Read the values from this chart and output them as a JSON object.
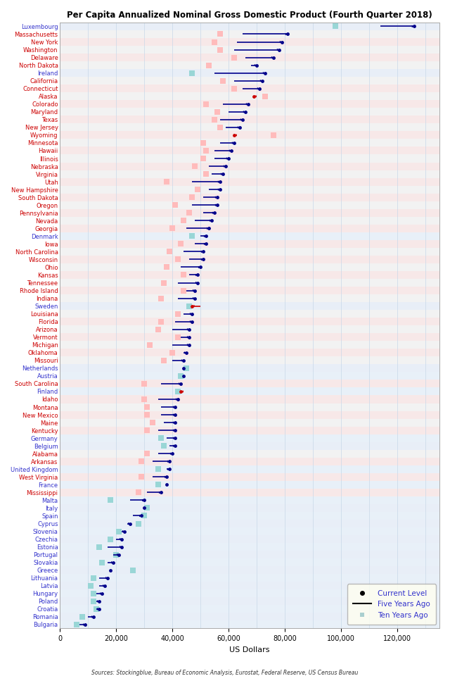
{
  "title": "Per Capita Annualized Nominal Gross Domestic Product (Fourth Quarter 2018)",
  "xlabel": "US Dollars",
  "source": "Sources: Stockingblue, Bureau of Economic Analysis, Eurostat, Federal Reserve, US Census Bureau",
  "entries": [
    {
      "label": "Luxembourg",
      "type": "eu",
      "ten": 98000,
      "five": 114000,
      "current": 126000
    },
    {
      "label": "Massachusetts",
      "type": "us",
      "ten": 57000,
      "five": 65000,
      "current": 81000
    },
    {
      "label": "New York",
      "type": "us",
      "ten": 55000,
      "five": 63000,
      "current": 79000
    },
    {
      "label": "Washington",
      "type": "us",
      "ten": 57000,
      "five": 62000,
      "current": 78000
    },
    {
      "label": "Delaware",
      "type": "us",
      "ten": 62000,
      "five": 66000,
      "current": 76000
    },
    {
      "label": "North Dakota",
      "type": "us",
      "ten": 53000,
      "five": 68000,
      "current": 70000
    },
    {
      "label": "Ireland",
      "type": "eu",
      "ten": 47000,
      "five": 55000,
      "current": 73000
    },
    {
      "label": "California",
      "type": "us",
      "ten": 58000,
      "five": 62000,
      "current": 72000
    },
    {
      "label": "Connecticut",
      "type": "us",
      "ten": 62000,
      "five": 65000,
      "current": 71000
    },
    {
      "label": "Alaska",
      "type": "us",
      "ten": 73000,
      "five": 70000,
      "current": 69000
    },
    {
      "label": "Colorado",
      "type": "us",
      "ten": 52000,
      "five": 58000,
      "current": 67000
    },
    {
      "label": "Maryland",
      "type": "us",
      "ten": 56000,
      "five": 60000,
      "current": 66000
    },
    {
      "label": "Texas",
      "type": "us",
      "ten": 55000,
      "five": 57000,
      "current": 65000
    },
    {
      "label": "New Jersey",
      "type": "us",
      "ten": 57000,
      "five": 59000,
      "current": 64000
    },
    {
      "label": "Wyoming",
      "type": "us",
      "ten": 76000,
      "five": 63000,
      "current": 62000
    },
    {
      "label": "Minnesota",
      "type": "us",
      "ten": 51000,
      "five": 57000,
      "current": 62000
    },
    {
      "label": "Hawaii",
      "type": "us",
      "ten": 52000,
      "five": 55000,
      "current": 61000
    },
    {
      "label": "Illinois",
      "type": "us",
      "ten": 51000,
      "five": 55000,
      "current": 60000
    },
    {
      "label": "Nebraska",
      "type": "us",
      "ten": 48000,
      "five": 53000,
      "current": 59000
    },
    {
      "label": "Virginia",
      "type": "us",
      "ten": 52000,
      "five": 54000,
      "current": 58000
    },
    {
      "label": "Utah",
      "type": "us",
      "ten": 38000,
      "five": 47000,
      "current": 57000
    },
    {
      "label": "New Hampshire",
      "type": "us",
      "ten": 49000,
      "five": 53000,
      "current": 57000
    },
    {
      "label": "South Dakota",
      "type": "us",
      "ten": 47000,
      "five": 51000,
      "current": 56000
    },
    {
      "label": "Oregon",
      "type": "us",
      "ten": 41000,
      "five": 47000,
      "current": 56000
    },
    {
      "label": "Pennsylvania",
      "type": "us",
      "ten": 46000,
      "five": 51000,
      "current": 55000
    },
    {
      "label": "Nevada",
      "type": "us",
      "ten": 44000,
      "five": 48000,
      "current": 54000
    },
    {
      "label": "Georgia",
      "type": "us",
      "ten": 40000,
      "five": 45000,
      "current": 53000
    },
    {
      "label": "Denmark",
      "type": "eu",
      "ten": 47000,
      "five": 50000,
      "current": 52000
    },
    {
      "label": "Iowa",
      "type": "us",
      "ten": 43000,
      "five": 48000,
      "current": 52000
    },
    {
      "label": "North Carolina",
      "type": "us",
      "ten": 39000,
      "five": 44000,
      "current": 51000
    },
    {
      "label": "Wisconsin",
      "type": "us",
      "ten": 42000,
      "five": 46000,
      "current": 51000
    },
    {
      "label": "Ohio",
      "type": "us",
      "ten": 38000,
      "five": 43000,
      "current": 50000
    },
    {
      "label": "Kansas",
      "type": "us",
      "ten": 44000,
      "five": 46000,
      "current": 49000
    },
    {
      "label": "Tennessee",
      "type": "us",
      "ten": 37000,
      "five": 42000,
      "current": 49000
    },
    {
      "label": "Rhode Island",
      "type": "us",
      "ten": 44000,
      "five": 45000,
      "current": 48000
    },
    {
      "label": "Indiana",
      "type": "us",
      "ten": 36000,
      "five": 42000,
      "current": 48000
    },
    {
      "label": "Sweden",
      "type": "eu",
      "ten": 46000,
      "five": 50000,
      "current": 47000
    },
    {
      "label": "Louisiana",
      "type": "us",
      "ten": 42000,
      "five": 44000,
      "current": 47000
    },
    {
      "label": "Florida",
      "type": "us",
      "ten": 36000,
      "five": 41000,
      "current": 47000
    },
    {
      "label": "Arizona",
      "type": "us",
      "ten": 35000,
      "five": 40000,
      "current": 46000
    },
    {
      "label": "Vermont",
      "type": "us",
      "ten": 42000,
      "five": 43000,
      "current": 46000
    },
    {
      "label": "Michigan",
      "type": "us",
      "ten": 32000,
      "five": 40000,
      "current": 46000
    },
    {
      "label": "Oklahoma",
      "type": "us",
      "ten": 40000,
      "five": 44000,
      "current": 45000
    },
    {
      "label": "Missouri",
      "type": "us",
      "ten": 37000,
      "five": 40000,
      "current": 44000
    },
    {
      "label": "Netherlands",
      "type": "eu",
      "ten": 45000,
      "five": 44000,
      "current": 44000
    },
    {
      "label": "Austria",
      "type": "eu",
      "ten": 43000,
      "five": 44000,
      "current": 44000
    },
    {
      "label": "South Carolina",
      "type": "us",
      "ten": 30000,
      "five": 36000,
      "current": 43000
    },
    {
      "label": "Finland",
      "type": "eu",
      "ten": 42000,
      "five": 44000,
      "current": 43000
    },
    {
      "label": "Idaho",
      "type": "us",
      "ten": 30000,
      "five": 35000,
      "current": 42000
    },
    {
      "label": "Montana",
      "type": "us",
      "ten": 31000,
      "five": 36000,
      "current": 41000
    },
    {
      "label": "New Mexico",
      "type": "us",
      "ten": 31000,
      "five": 36000,
      "current": 41000
    },
    {
      "label": "Maine",
      "type": "us",
      "ten": 33000,
      "five": 37000,
      "current": 41000
    },
    {
      "label": "Kentucky",
      "type": "us",
      "ten": 31000,
      "five": 35000,
      "current": 41000
    },
    {
      "label": "Germany",
      "type": "eu",
      "ten": 36000,
      "five": 38000,
      "current": 41000
    },
    {
      "label": "Belgium",
      "type": "eu",
      "ten": 37000,
      "five": 39000,
      "current": 41000
    },
    {
      "label": "Alabama",
      "type": "us",
      "ten": 31000,
      "five": 35000,
      "current": 40000
    },
    {
      "label": "Arkansas",
      "type": "us",
      "ten": 29000,
      "five": 33000,
      "current": 39000
    },
    {
      "label": "United Kingdom",
      "type": "eu",
      "ten": 35000,
      "five": 38000,
      "current": 39000
    },
    {
      "label": "West Virginia",
      "type": "us",
      "ten": 29000,
      "five": 33000,
      "current": 38000
    },
    {
      "label": "France",
      "type": "eu",
      "ten": 35000,
      "five": 38000,
      "current": 38000
    },
    {
      "label": "Mississippi",
      "type": "us",
      "ten": 28000,
      "five": 31000,
      "current": 36000
    },
    {
      "label": "Malta",
      "type": "eu",
      "ten": 18000,
      "five": 25000,
      "current": 30000
    },
    {
      "label": "Italy",
      "type": "eu",
      "ten": 31000,
      "five": 30000,
      "current": 30000
    },
    {
      "label": "Spain",
      "type": "eu",
      "ten": 30000,
      "five": 26000,
      "current": 29000
    },
    {
      "label": "Cyprus",
      "type": "eu",
      "ten": 28000,
      "five": 24000,
      "current": 25000
    },
    {
      "label": "Slovenia",
      "type": "eu",
      "ten": 21000,
      "five": 22000,
      "current": 23000
    },
    {
      "label": "Czechia",
      "type": "eu",
      "ten": 18000,
      "five": 20000,
      "current": 22000
    },
    {
      "label": "Estonia",
      "type": "eu",
      "ten": 14000,
      "five": 17000,
      "current": 22000
    },
    {
      "label": "Portugal",
      "type": "eu",
      "ten": 20000,
      "five": 19000,
      "current": 21000
    },
    {
      "label": "Slovakia",
      "type": "eu",
      "ten": 15000,
      "five": 17000,
      "current": 19000
    },
    {
      "label": "Greece",
      "type": "eu",
      "ten": 26000,
      "five": 18000,
      "current": 18000
    },
    {
      "label": "Lithuania",
      "type": "eu",
      "ten": 12000,
      "five": 14000,
      "current": 17000
    },
    {
      "label": "Latvia",
      "type": "eu",
      "ten": 11000,
      "five": 14000,
      "current": 16000
    },
    {
      "label": "Hungary",
      "type": "eu",
      "ten": 12000,
      "five": 13000,
      "current": 15000
    },
    {
      "label": "Poland",
      "type": "eu",
      "ten": 12000,
      "five": 13000,
      "current": 14000
    },
    {
      "label": "Croatia",
      "type": "eu",
      "ten": 13000,
      "five": 13000,
      "current": 14000
    },
    {
      "label": "Romania",
      "type": "eu",
      "ten": 8000,
      "five": 10000,
      "current": 12000
    },
    {
      "label": "Bulgaria",
      "type": "eu",
      "ten": 6000,
      "five": 7000,
      "current": 9000
    }
  ],
  "us_color": "#cc0000",
  "eu_color": "#3333cc",
  "forward_line_color": "#00008B",
  "backward_line_color": "#cc0000",
  "dot_color_forward": "#00008B",
  "dot_color_backward": "#cc0000",
  "ten_color_us": "#ffbbbb",
  "ten_color_eu": "#99d6d6",
  "bg_us_row": "#f7e8e8",
  "bg_eu_row": "#e8eef7",
  "bg_alt_us": "#f2f2f2",
  "bg_alt_eu": "#e8f0f8",
  "grid_color": "#c8d8e8",
  "xmax": 135000,
  "xtick_step": 20000
}
